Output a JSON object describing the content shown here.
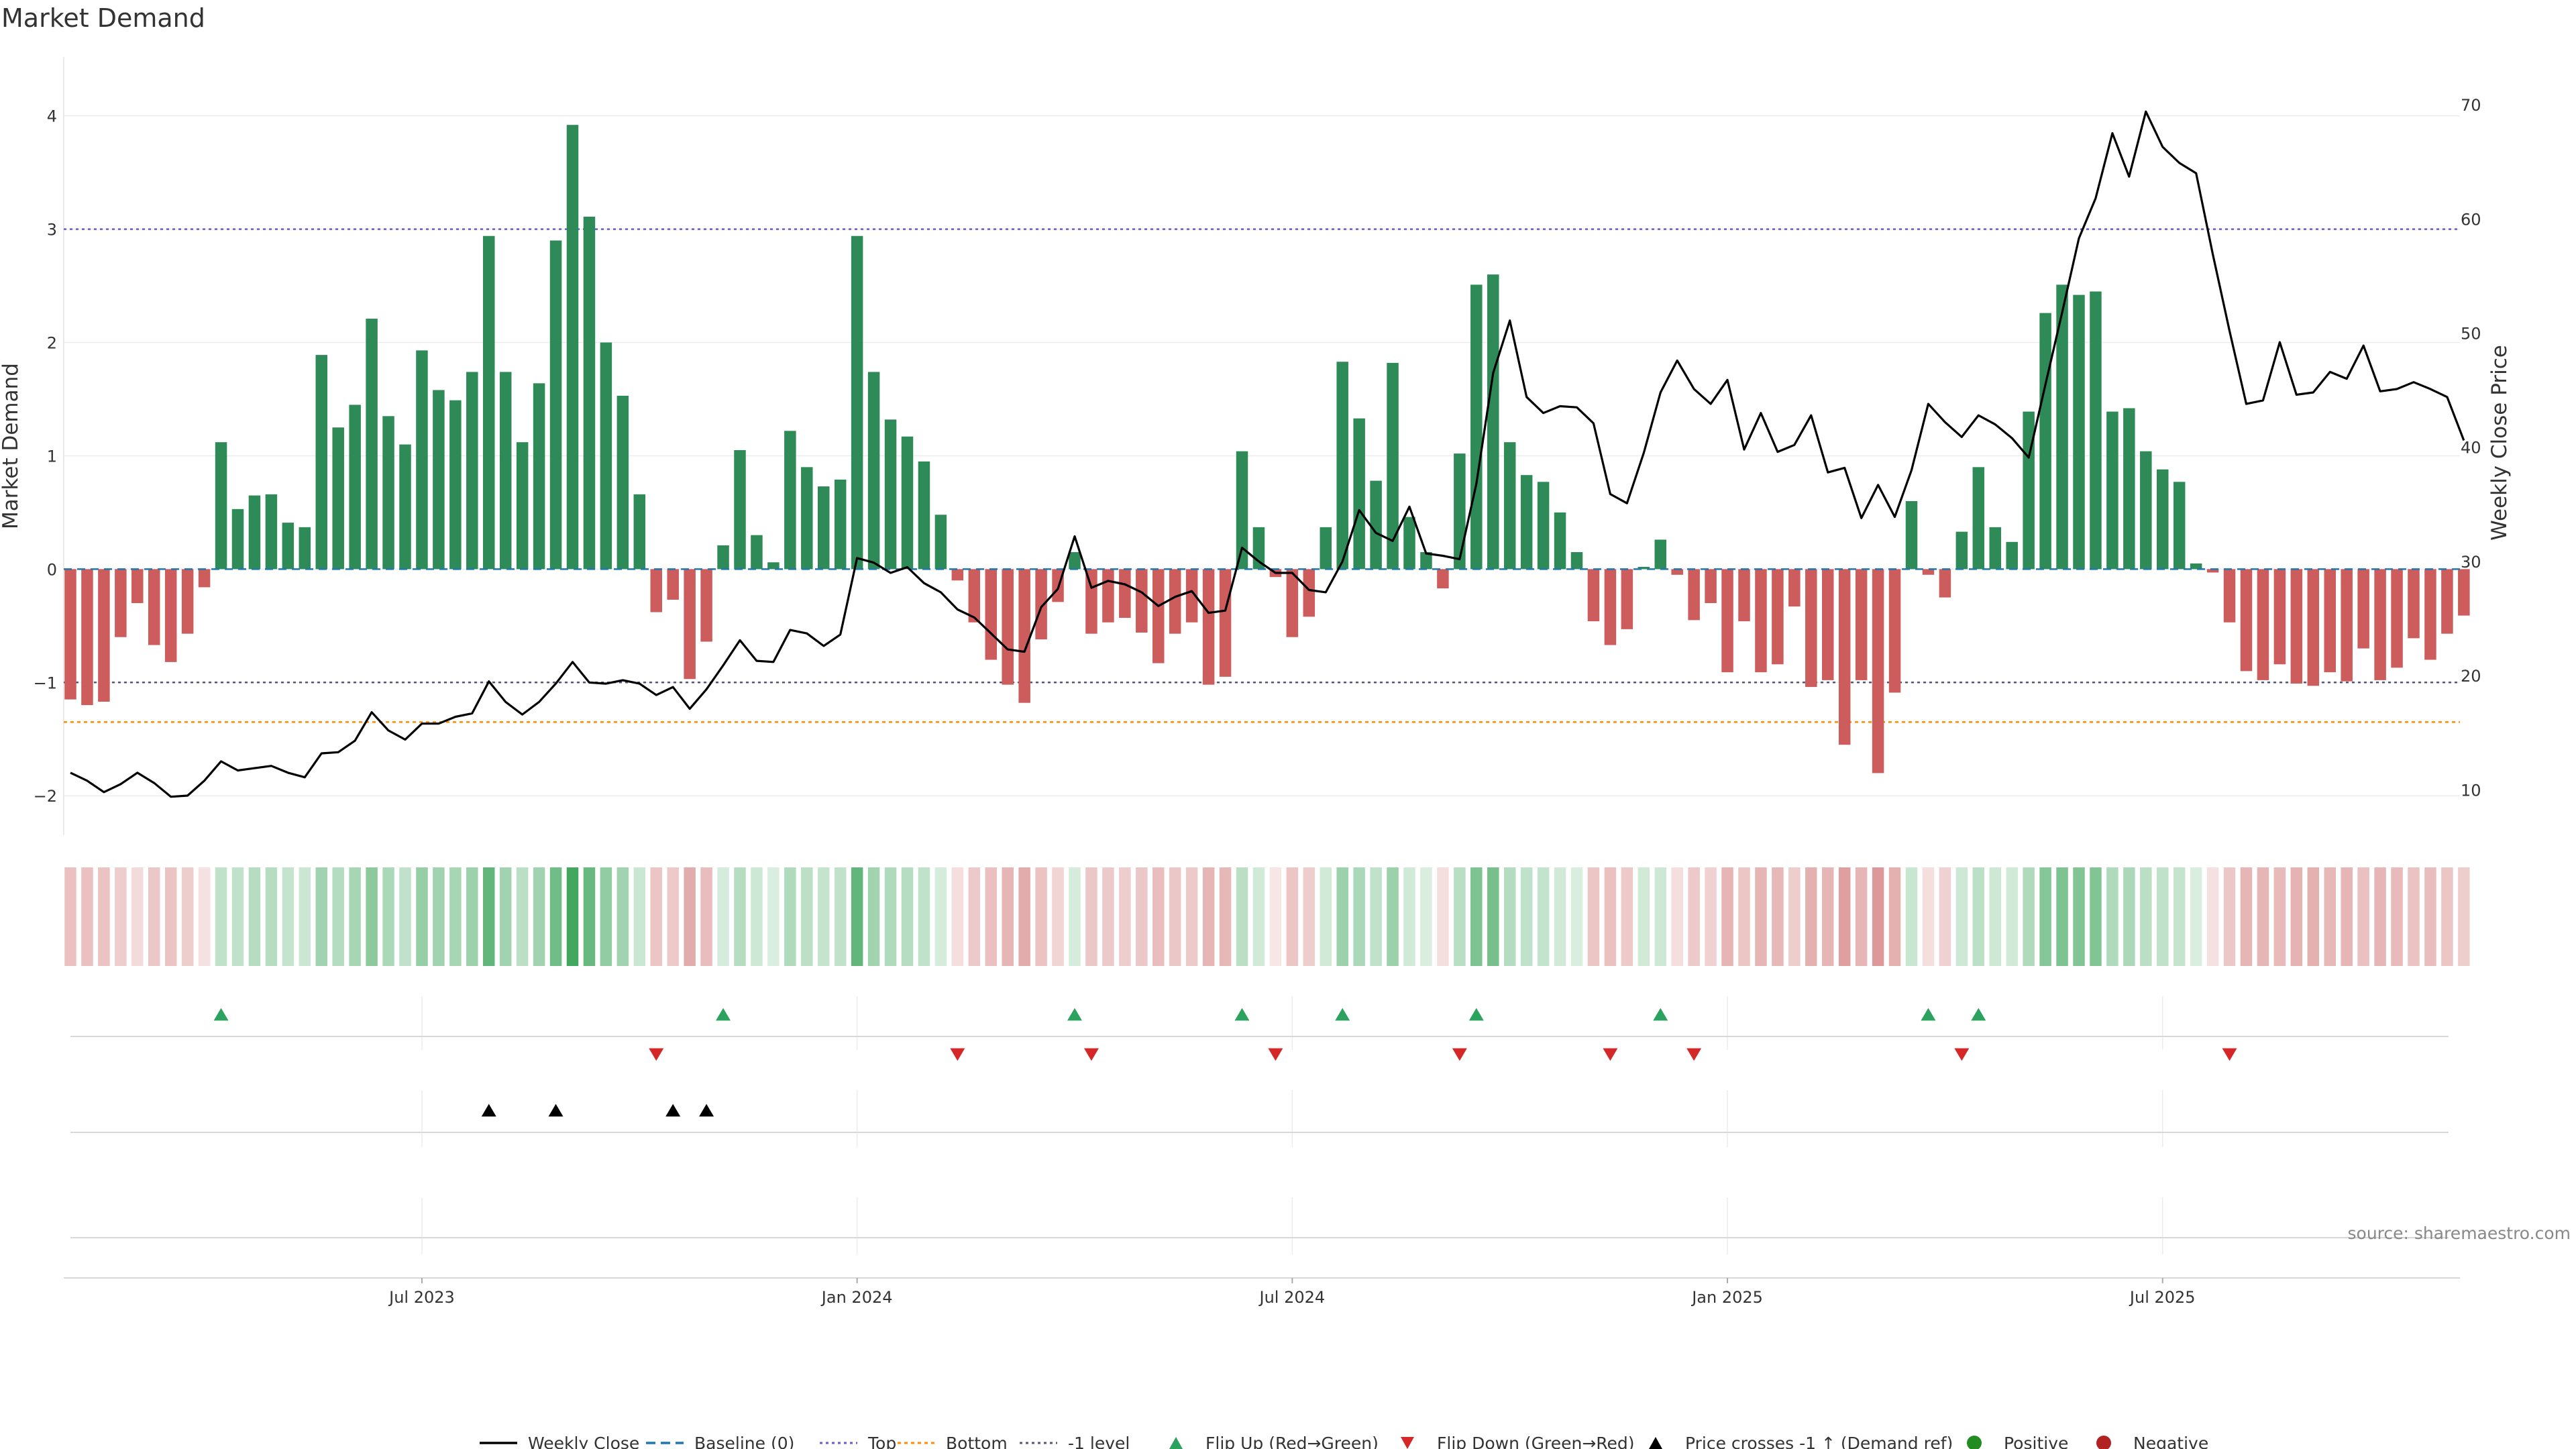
{
  "chart_data": {
    "type": "bar",
    "title": "Market Demand",
    "ylabel": "Market Demand",
    "y2label": "Weekly Close Price",
    "ylim": [
      -2.2,
      4.3
    ],
    "y2lim": [
      7.5,
      72
    ],
    "yticks": [
      "4",
      "3",
      "2",
      "1",
      "0",
      "−1",
      "−2"
    ],
    "y2ticks": [
      "70",
      "60",
      "50",
      "40",
      "30",
      "20",
      "10"
    ],
    "xticks": [
      "Jul 2023",
      "Jan 2024",
      "Jul 2024",
      "Jan 2025",
      "Jul 2025"
    ],
    "start_date": "2023-01-06",
    "xtick_weeks": [
      21,
      47,
      73,
      99,
      125
    ],
    "reference_lines": {
      "top": 3.0,
      "bottom": -1.35,
      "minus_one": -1.0,
      "baseline": 0
    },
    "demand": [
      -1.15,
      -1.2,
      -1.17,
      -0.6,
      -0.3,
      -0.67,
      -0.82,
      -0.57,
      -0.16,
      1.12,
      0.53,
      0.65,
      0.66,
      0.41,
      0.37,
      1.89,
      1.25,
      1.45,
      2.21,
      1.35,
      1.1,
      1.93,
      1.58,
      1.49,
      1.74,
      2.94,
      1.74,
      1.12,
      1.64,
      2.9,
      3.92,
      3.11,
      2.0,
      1.53,
      0.66,
      -0.38,
      -0.27,
      -0.97,
      -0.64,
      0.21,
      1.05,
      0.3,
      0.06,
      1.22,
      0.9,
      0.73,
      0.79,
      2.94,
      1.74,
      1.32,
      1.17,
      0.95,
      0.48,
      -0.1,
      -0.47,
      -0.8,
      -1.02,
      -1.18,
      -0.62,
      -0.29,
      0.15,
      -0.57,
      -0.47,
      -0.43,
      -0.56,
      -0.83,
      -0.57,
      -0.47,
      -1.02,
      -0.95,
      1.04,
      0.37,
      -0.07,
      -0.6,
      -0.42,
      0.37,
      1.83,
      1.33,
      0.78,
      1.82,
      0.46,
      0.15,
      -0.17,
      1.02,
      2.51,
      2.6,
      1.12,
      0.83,
      0.77,
      0.5,
      0.15,
      -0.46,
      -0.67,
      -0.53,
      0.02,
      0.26,
      -0.05,
      -0.45,
      -0.3,
      -0.91,
      -0.46,
      -0.91,
      -0.84,
      -0.33,
      -1.04,
      -0.98,
      -1.55,
      -0.98,
      -1.8,
      -1.09,
      0.6,
      -0.05,
      -0.25,
      0.33,
      0.9,
      0.37,
      0.24,
      1.39,
      2.26,
      2.51,
      2.42,
      2.45,
      1.39,
      1.42,
      1.04,
      0.88,
      0.77,
      0.05,
      -0.03,
      -0.47,
      -0.9,
      -0.98,
      -0.84,
      -1.01,
      -1.03,
      -0.91,
      -0.99,
      -0.7,
      -0.98,
      -0.87,
      -0.61,
      -0.8,
      -0.57,
      -0.41
    ],
    "series": [
      {
        "name": "Weekly Close",
        "values": [
          11.5,
          10.8,
          9.8,
          10.5,
          11.5,
          10.6,
          9.4,
          9.5,
          10.8,
          12.5,
          11.7,
          11.9,
          12.1,
          11.5,
          11.1,
          13.2,
          13.3,
          14.3,
          16.8,
          15.2,
          14.4,
          15.8,
          15.8,
          16.4,
          16.7,
          19.5,
          17.7,
          16.6,
          17.7,
          19.3,
          21.2,
          19.4,
          19.3,
          19.6,
          19.3,
          18.3,
          19.0,
          17.1,
          18.8,
          20.9,
          23.1,
          21.3,
          21.2,
          24.0,
          23.7,
          22.6,
          23.6,
          30.3,
          29.9,
          29.0,
          29.5,
          28.1,
          27.3,
          25.8,
          25.1,
          23.7,
          22.3,
          22.1,
          26.0,
          27.6,
          32.2,
          27.7,
          28.3,
          28.0,
          27.3,
          26.1,
          26.9,
          27.4,
          25.5,
          25.7,
          31.2,
          30.0,
          29.0,
          29.0,
          27.5,
          27.3,
          30.0,
          34.5,
          32.5,
          31.8,
          34.8,
          30.7,
          30.5,
          30.2,
          36.8,
          46.5,
          51.1,
          44.4,
          43.0,
          43.6,
          43.5,
          42.1,
          35.9,
          35.1,
          39.5,
          44.8,
          47.6,
          45.1,
          43.8,
          45.9,
          39.8,
          43.0,
          39.6,
          40.2,
          42.8,
          37.8,
          38.2,
          33.8,
          36.7,
          33.9,
          38.0,
          43.8,
          42.2,
          40.9,
          42.8,
          42.0,
          40.8,
          39.1,
          45.5,
          51.8,
          58.3,
          61.8,
          67.5,
          63.7,
          69.4,
          66.3,
          64.9,
          64.0,
          56.9,
          50.2,
          43.8,
          44.1,
          49.2,
          44.6,
          44.8,
          46.6,
          46.0,
          48.9,
          44.9,
          45.1,
          45.7,
          45.1,
          44.4,
          40.6
        ]
      }
    ],
    "heat_alphas": [
      0.38,
      0.38,
      0.36,
      0.3,
      0.22,
      0.34,
      0.36,
      0.3,
      0.18,
      0.3,
      0.3,
      0.35,
      0.35,
      0.28,
      0.25,
      0.45,
      0.36,
      0.42,
      0.55,
      0.4,
      0.3,
      0.5,
      0.45,
      0.42,
      0.47,
      0.75,
      0.45,
      0.33,
      0.45,
      0.68,
      0.9,
      0.72,
      0.52,
      0.45,
      0.25,
      0.35,
      0.33,
      0.5,
      0.4,
      0.2,
      0.35,
      0.24,
      0.18,
      0.38,
      0.32,
      0.28,
      0.3,
      0.75,
      0.45,
      0.38,
      0.35,
      0.3,
      0.2,
      0.2,
      0.32,
      0.38,
      0.45,
      0.5,
      0.36,
      0.26,
      0.2,
      0.34,
      0.32,
      0.3,
      0.34,
      0.4,
      0.34,
      0.32,
      0.45,
      0.43,
      0.33,
      0.22,
      0.15,
      0.35,
      0.3,
      0.22,
      0.48,
      0.4,
      0.3,
      0.48,
      0.22,
      0.18,
      0.2,
      0.34,
      0.62,
      0.65,
      0.36,
      0.3,
      0.29,
      0.22,
      0.18,
      0.35,
      0.38,
      0.33,
      0.22,
      0.24,
      0.2,
      0.33,
      0.28,
      0.45,
      0.35,
      0.45,
      0.43,
      0.3,
      0.48,
      0.45,
      0.58,
      0.45,
      0.62,
      0.48,
      0.26,
      0.2,
      0.28,
      0.24,
      0.32,
      0.24,
      0.22,
      0.38,
      0.58,
      0.62,
      0.6,
      0.6,
      0.38,
      0.4,
      0.33,
      0.3,
      0.28,
      0.18,
      0.18,
      0.34,
      0.45,
      0.45,
      0.42,
      0.46,
      0.48,
      0.43,
      0.45,
      0.38,
      0.45,
      0.42,
      0.36,
      0.4,
      0.35,
      0.3
    ],
    "flip_up": [
      9,
      39,
      60,
      70,
      76,
      84,
      95,
      111,
      114
    ],
    "flip_down": [
      35,
      53,
      61,
      72,
      83,
      92,
      97,
      113,
      129
    ],
    "price_crosses": [
      25,
      29,
      36,
      38
    ],
    "legend": [
      "Weekly Close",
      "Baseline (0)",
      "Top",
      "Bottom",
      "-1 level",
      "Flip Up (Red→Green)",
      "Flip Down (Green→Red)",
      "Price crosses -1 ↑ (Demand ref)",
      "Positive",
      "Negative"
    ],
    "colors": {
      "positive": "#2e8b57",
      "negative": "#cd5c5c",
      "heat_pos": "#2e9e4f",
      "heat_neg": "#c85a5a",
      "flip_up": "#2ca25f",
      "flip_down": "#d62728",
      "cross": "#000000",
      "line": "#000000",
      "baseline": "#1f77b4",
      "top": "#6a5acd",
      "bottom": "#ff8c00",
      "minus_one": "#555577",
      "pos_dot": "#228b22",
      "neg_dot": "#b22222"
    },
    "source": "source: sharemaestro.com"
  }
}
